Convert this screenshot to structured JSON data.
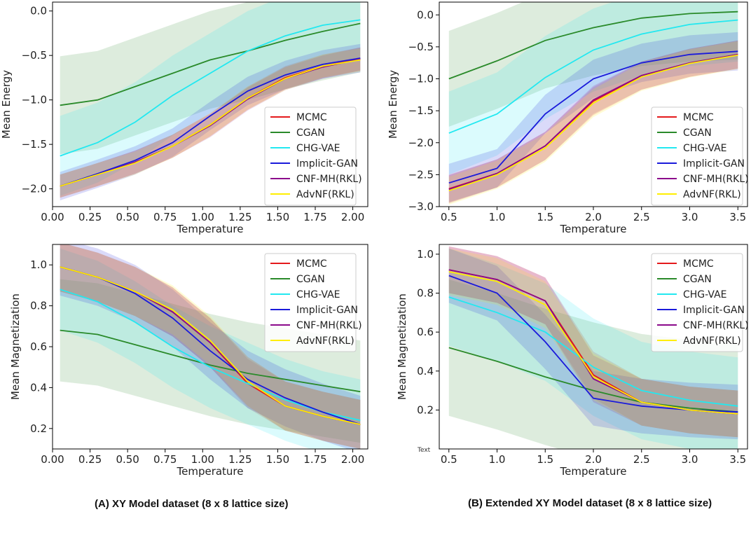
{
  "captions": {
    "a": "(A) XY Model dataset (8 x 8 lattice size)",
    "b": "(B) Extended XY Model dataset (8 x 8 lattice size)"
  },
  "stray_text": "Text",
  "chart_data": [
    {
      "type": "line",
      "panel": "A-top",
      "xlabel": "Temperature",
      "ylabel": "Mean Energy",
      "xlim": [
        0.0,
        2.1
      ],
      "ylim": [
        -2.2,
        0.1
      ],
      "xticks": [
        0.0,
        0.25,
        0.5,
        0.75,
        1.0,
        1.25,
        1.5,
        1.75,
        2.0
      ],
      "xtick_labels": [
        "0.00",
        "0.25",
        "0.50",
        "0.75",
        "1.00",
        "1.25",
        "1.50",
        "1.75",
        "2.00"
      ],
      "yticks": [
        -2.0,
        -1.5,
        -1.0,
        -0.5,
        0.0
      ],
      "ytick_labels": [
        "−2.0",
        "−1.5",
        "−1.0",
        "−0.5",
        "0.0"
      ],
      "legend": "center-right",
      "x": [
        0.05,
        0.3,
        0.55,
        0.8,
        1.05,
        1.3,
        1.55,
        1.8,
        2.05
      ],
      "series": [
        {
          "name": "MCMC",
          "color": "#e41a1c",
          "values": [
            -1.97,
            -1.84,
            -1.7,
            -1.52,
            -1.28,
            -0.98,
            -0.75,
            -0.62,
            -0.54
          ],
          "band": 0.13
        },
        {
          "name": "CGAN",
          "color": "#2a8a2a",
          "values": [
            -1.06,
            -1.0,
            -0.85,
            -0.7,
            -0.55,
            -0.45,
            -0.33,
            -0.23,
            -0.14
          ],
          "band": 0.55
        },
        {
          "name": "CHG-VAE",
          "color": "#22e8f0",
          "values": [
            -1.63,
            -1.48,
            -1.25,
            -0.95,
            -0.7,
            -0.45,
            -0.28,
            -0.16,
            -0.1
          ],
          "band": 0.45
        },
        {
          "name": "Implicit-GAN",
          "color": "#1a1adb",
          "values": [
            -1.97,
            -1.83,
            -1.68,
            -1.48,
            -1.18,
            -0.9,
            -0.72,
            -0.6,
            -0.53
          ],
          "band": 0.16
        },
        {
          "name": "CNF-MH(RKL)",
          "color": "#8b0a8b",
          "values": [
            -1.97,
            -1.84,
            -1.7,
            -1.52,
            -1.29,
            -0.99,
            -0.76,
            -0.63,
            -0.54
          ],
          "band": 0.13
        },
        {
          "name": "AdvNF(RKL)",
          "color": "#ffee00",
          "values": [
            -1.97,
            -1.84,
            -1.71,
            -1.52,
            -1.28,
            -0.98,
            -0.76,
            -0.62,
            -0.55
          ],
          "band": 0.13
        }
      ]
    },
    {
      "type": "line",
      "panel": "B-top",
      "xlabel": "Temperature",
      "ylabel": "Mean Energy",
      "xlim": [
        0.4,
        3.6
      ],
      "ylim": [
        -3.0,
        0.2
      ],
      "xticks": [
        0.5,
        1.0,
        1.5,
        2.0,
        2.5,
        3.0,
        3.5
      ],
      "xtick_labels": [
        "0.5",
        "1.0",
        "1.5",
        "2.0",
        "2.5",
        "3.0",
        "3.5"
      ],
      "yticks": [
        -3.0,
        -2.5,
        -2.0,
        -1.5,
        -1.0,
        -0.5,
        0.0
      ],
      "ytick_labels": [
        "−3.0",
        "−2.5",
        "−2.0",
        "−1.5",
        "−1.0",
        "−0.5",
        "0.0"
      ],
      "legend": "center-right",
      "x": [
        0.5,
        1.0,
        1.5,
        2.0,
        2.5,
        3.0,
        3.5
      ],
      "series": [
        {
          "name": "MCMC",
          "color": "#e41a1c",
          "values": [
            -2.72,
            -2.48,
            -2.05,
            -1.35,
            -0.95,
            -0.75,
            -0.62
          ],
          "band": 0.22
        },
        {
          "name": "CGAN",
          "color": "#2a8a2a",
          "values": [
            -1.0,
            -0.72,
            -0.4,
            -0.2,
            -0.05,
            0.02,
            0.05
          ],
          "band": 0.75
        },
        {
          "name": "CHG-VAE",
          "color": "#22e8f0",
          "values": [
            -1.85,
            -1.55,
            -0.98,
            -0.55,
            -0.3,
            -0.15,
            -0.08
          ],
          "band": 0.65
        },
        {
          "name": "Implicit-GAN",
          "color": "#1a1adb",
          "values": [
            -2.63,
            -2.4,
            -1.55,
            -1.0,
            -0.75,
            -0.62,
            -0.57
          ],
          "band": 0.3
        },
        {
          "name": "CNF-MH(RKL)",
          "color": "#8b0a8b",
          "values": [
            -2.73,
            -2.48,
            -2.05,
            -1.33,
            -0.95,
            -0.75,
            -0.62
          ],
          "band": 0.22
        },
        {
          "name": "AdvNF(RKL)",
          "color": "#ffee00",
          "values": [
            -2.75,
            -2.5,
            -2.08,
            -1.38,
            -0.97,
            -0.76,
            -0.63
          ],
          "band": 0.22
        }
      ]
    },
    {
      "type": "line",
      "panel": "A-bottom",
      "xlabel": "Temperature",
      "ylabel": "Mean Magnetization",
      "xlim": [
        0.0,
        2.1
      ],
      "ylim": [
        0.1,
        1.1
      ],
      "xticks": [
        0.0,
        0.25,
        0.5,
        0.75,
        1.0,
        1.25,
        1.5,
        1.75,
        2.0
      ],
      "xtick_labels": [
        "0.00",
        "0.25",
        "0.50",
        "0.75",
        "1.00",
        "1.25",
        "1.50",
        "1.75",
        "2.00"
      ],
      "yticks": [
        0.2,
        0.4,
        0.6,
        0.8,
        1.0
      ],
      "ytick_labels": [
        "0.2",
        "0.4",
        "0.6",
        "0.8",
        "1.0"
      ],
      "legend": "top-right",
      "x": [
        0.05,
        0.3,
        0.55,
        0.8,
        1.05,
        1.3,
        1.55,
        1.8,
        2.05
      ],
      "series": [
        {
          "name": "MCMC",
          "color": "#e41a1c",
          "values": [
            0.99,
            0.94,
            0.87,
            0.77,
            0.62,
            0.42,
            0.31,
            0.26,
            0.22
          ],
          "band": 0.12
        },
        {
          "name": "CGAN",
          "color": "#2a8a2a",
          "values": [
            0.68,
            0.66,
            0.61,
            0.56,
            0.51,
            0.47,
            0.44,
            0.41,
            0.38
          ],
          "band": 0.25
        },
        {
          "name": "CHG-VAE",
          "color": "#22e8f0",
          "values": [
            0.88,
            0.82,
            0.72,
            0.6,
            0.5,
            0.42,
            0.34,
            0.28,
            0.24
          ],
          "band": 0.2
        },
        {
          "name": "Implicit-GAN",
          "color": "#1a1adb",
          "values": [
            0.99,
            0.94,
            0.86,
            0.74,
            0.58,
            0.44,
            0.35,
            0.28,
            0.22
          ],
          "band": 0.14
        },
        {
          "name": "CNF-MH(RKL)",
          "color": "#8b0a8b",
          "values": [
            0.99,
            0.94,
            0.87,
            0.77,
            0.62,
            0.43,
            0.31,
            0.26,
            0.22
          ],
          "band": 0.12
        },
        {
          "name": "AdvNF(RKL)",
          "color": "#ffee00",
          "values": [
            0.99,
            0.94,
            0.87,
            0.78,
            0.63,
            0.43,
            0.31,
            0.26,
            0.22
          ],
          "band": 0.12
        }
      ]
    },
    {
      "type": "line",
      "panel": "B-bottom",
      "xlabel": "Temperature",
      "ylabel": "Mean Magnetization",
      "xlim": [
        0.4,
        3.6
      ],
      "ylim": [
        0.0,
        1.05
      ],
      "xticks": [
        0.5,
        1.0,
        1.5,
        2.0,
        2.5,
        3.0,
        3.5
      ],
      "xtick_labels": [
        "0.5",
        "1.0",
        "1.5",
        "2.0",
        "2.5",
        "3.0",
        "3.5"
      ],
      "yticks": [
        0.2,
        0.4,
        0.6,
        0.8,
        1.0
      ],
      "ytick_labels": [
        "0.2",
        "0.4",
        "0.6",
        "0.8",
        "1.0"
      ],
      "legend": "top-right",
      "x": [
        0.5,
        1.0,
        1.5,
        2.0,
        2.5,
        3.0,
        3.5
      ],
      "series": [
        {
          "name": "MCMC",
          "color": "#e41a1c",
          "values": [
            0.92,
            0.87,
            0.76,
            0.38,
            0.24,
            0.2,
            0.18
          ],
          "band": 0.12
        },
        {
          "name": "CGAN",
          "color": "#2a8a2a",
          "values": [
            0.52,
            0.45,
            0.37,
            0.3,
            0.24,
            0.21,
            0.19
          ],
          "band": 0.35
        },
        {
          "name": "CHG-VAE",
          "color": "#22e8f0",
          "values": [
            0.78,
            0.7,
            0.6,
            0.42,
            0.3,
            0.25,
            0.22
          ],
          "band": 0.25
        },
        {
          "name": "Implicit-GAN",
          "color": "#1a1adb",
          "values": [
            0.89,
            0.8,
            0.55,
            0.26,
            0.22,
            0.2,
            0.19
          ],
          "band": 0.14
        },
        {
          "name": "CNF-MH(RKL)",
          "color": "#8b0a8b",
          "values": [
            0.92,
            0.87,
            0.76,
            0.36,
            0.24,
            0.2,
            0.18
          ],
          "band": 0.12
        },
        {
          "name": "AdvNF(RKL)",
          "color": "#ffee00",
          "values": [
            0.91,
            0.86,
            0.74,
            0.37,
            0.24,
            0.2,
            0.18
          ],
          "band": 0.12
        }
      ]
    }
  ]
}
